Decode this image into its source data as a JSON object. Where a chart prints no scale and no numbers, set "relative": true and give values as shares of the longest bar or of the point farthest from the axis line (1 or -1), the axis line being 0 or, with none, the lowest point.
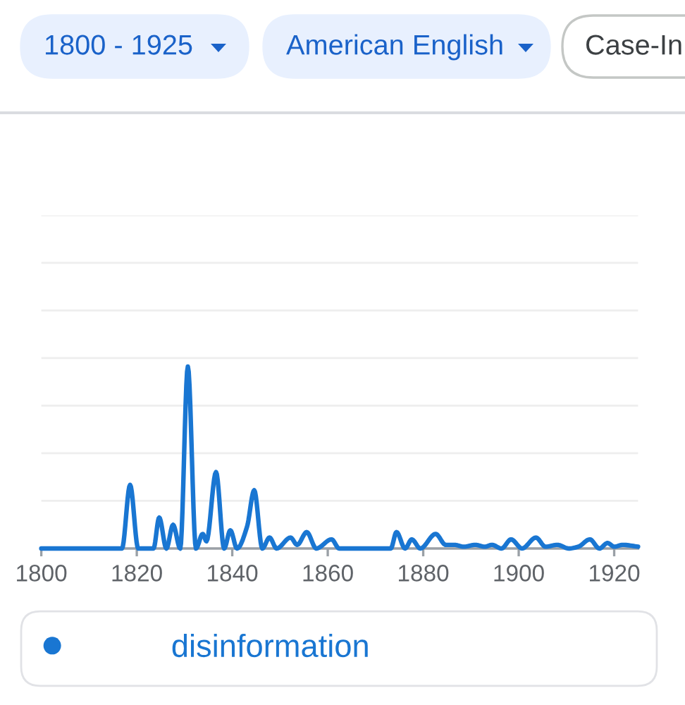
{
  "chart_data": {
    "type": "line",
    "relative": true,
    "xlim": [
      1800,
      1925
    ],
    "xticks": [
      1800,
      1820,
      1840,
      1860,
      1880,
      1900,
      1920
    ],
    "grid": "y",
    "legend": "bottom",
    "annotations": [
      "1800 - 1925",
      "American English",
      "Case-In"
    ],
    "series": [
      {
        "name": "disinformation",
        "color": "#1976d2",
        "x": [
          1800,
          1816.9,
          1818.6,
          1820.3,
          1823.5,
          1824.7,
          1826.2,
          1827.6,
          1829.1,
          1830.7,
          1832.4,
          1833.8,
          1834.6,
          1836.6,
          1838.3,
          1839.6,
          1841.0,
          1843.1,
          1844.6,
          1846.3,
          1847.8,
          1849.3,
          1852.2,
          1853.6,
          1855.6,
          1857.6,
          1860.8,
          1862.4,
          1873.2,
          1874.4,
          1876.2,
          1877.6,
          1879.4,
          1882.6,
          1884.7,
          1886.5,
          1888.5,
          1890.9,
          1892.9,
          1894.4,
          1896.4,
          1898.4,
          1900.7,
          1903.6,
          1905.6,
          1908.1,
          1910.5,
          1912.5,
          1914.9,
          1916.9,
          1918.6,
          1920.0,
          1921.8,
          1925
        ],
        "values": [
          0,
          0,
          0.35,
          0,
          0,
          0.17,
          0,
          0.13,
          0,
          1.0,
          0,
          0.08,
          0.04,
          0.42,
          0,
          0.1,
          0,
          0.12,
          0.32,
          0,
          0.06,
          0,
          0.06,
          0.02,
          0.09,
          0,
          0.05,
          0,
          0,
          0.09,
          0,
          0.05,
          0,
          0.08,
          0.02,
          0.02,
          0.01,
          0.02,
          0.01,
          0.02,
          0,
          0.05,
          0,
          0.06,
          0.01,
          0.02,
          0,
          0.01,
          0.05,
          0,
          0.03,
          0.01,
          0.02,
          0.01
        ]
      }
    ]
  }
}
